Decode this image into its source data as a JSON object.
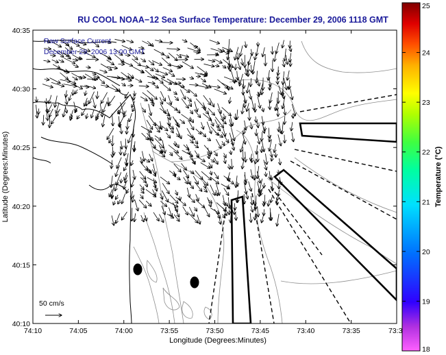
{
  "title": "RU COOL  NOAA−12  Sea Surface Temperature:  December 29, 2006 1118 GMT",
  "overlay": {
    "line1": "Raw Surface Current",
    "line2": "December 29, 2006 13:00 GMT"
  },
  "scale_label": "50 cm/s",
  "x_axis": {
    "label": "Longitude (Degrees:Minutes)",
    "ticks": [
      "74:10",
      "74:05",
      "74:00",
      "73:55",
      "73:50",
      "73:45",
      "73:40",
      "73:35",
      "73:3"
    ]
  },
  "y_axis": {
    "label": "Latitude (Degrees:Minutes)",
    "ticks": [
      "40:35",
      "40:30",
      "40:25",
      "40:20",
      "40:15",
      "40:10"
    ]
  },
  "colorbar": {
    "label": "Temperature (°C)",
    "min": 18,
    "max": 25,
    "ticks": [
      "25",
      "24",
      "23",
      "22",
      "21",
      "20",
      "19",
      "18"
    ],
    "colors": [
      "#ff60ff",
      "#8800cc",
      "#0000ff",
      "#0080ff",
      "#00e0ff",
      "#00ffa0",
      "#40ff40",
      "#a0ff00",
      "#ffff00",
      "#ffb000",
      "#ff6000",
      "#ff0000",
      "#cc0000",
      "#880000"
    ]
  },
  "colors": {
    "title": "#1a1a9a",
    "coast": "#000000",
    "bathymetry": "#8c8c8c"
  }
}
